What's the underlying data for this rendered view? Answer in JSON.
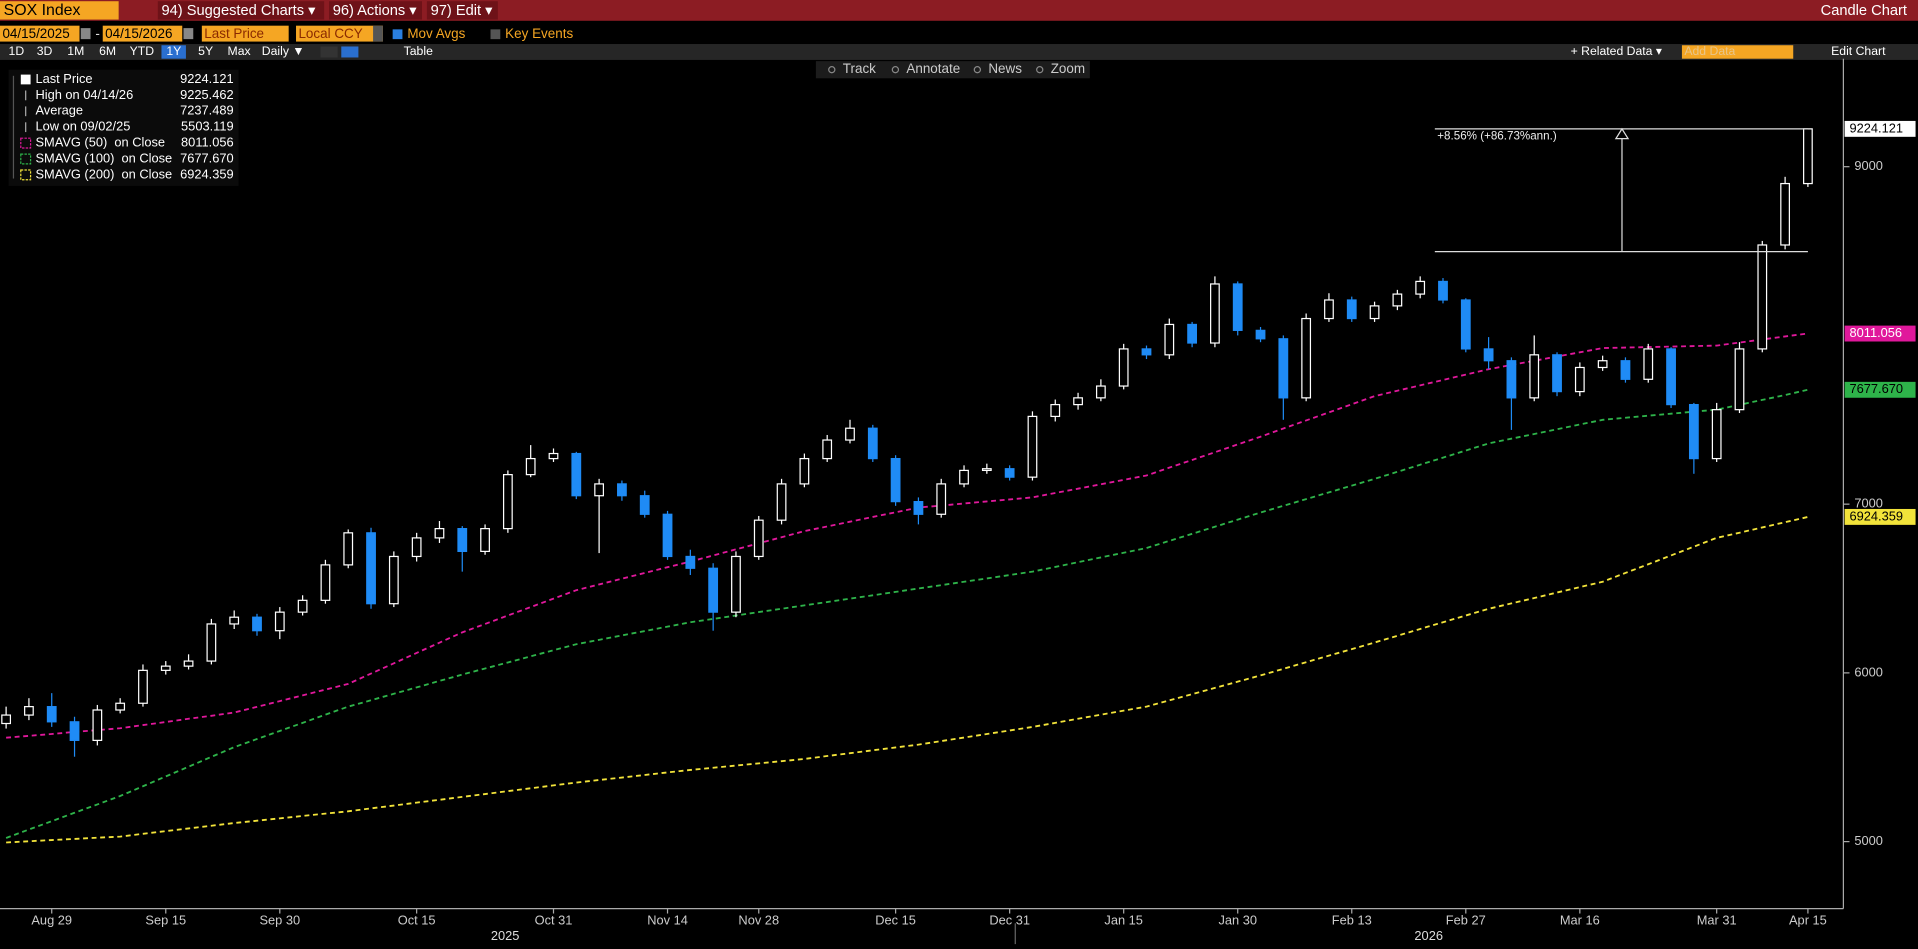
{
  "header": {
    "security": "SOX Index",
    "menus": [
      "94) Suggested Charts ▾",
      "96) Actions ▾",
      "97) Edit ▾"
    ],
    "chart_type": "Candle Chart"
  },
  "controls": {
    "start": "04/15/2025",
    "dash": "-",
    "end": "04/15/2026",
    "field": "Last Price",
    "currency": "Local CCY",
    "mov_avgs": "Mov Avgs",
    "key_events": "Key Events",
    "periods": [
      "1D",
      "3D",
      "1M",
      "6M",
      "YTD",
      "1Y",
      "5Y",
      "Max"
    ],
    "selected_period": "1Y",
    "frequency": "Daily ▼",
    "table": "Table",
    "related": "+ Related Data ▾",
    "add_data": "Add Data",
    "edit": "Edit Chart"
  },
  "toolbar": [
    "Track",
    "Annotate",
    "News",
    "Zoom"
  ],
  "chart_data": {
    "type": "candlestick",
    "categories": [
      null,
      null,
      "Aug 29",
      null,
      null,
      null,
      null,
      "Sep 15",
      null,
      null,
      null,
      null,
      "Sep 30",
      null,
      null,
      null,
      null,
      null,
      "Oct 15",
      null,
      null,
      null,
      null,
      null,
      "Oct 31",
      null,
      null,
      null,
      null,
      "Nov 14",
      null,
      null,
      null,
      "Nov 28",
      null,
      null,
      null,
      null,
      null,
      "Dec 15",
      null,
      null,
      null,
      null,
      "Dec 31",
      null,
      null,
      null,
      null,
      "Jan 15",
      null,
      null,
      null,
      null,
      "Jan 30",
      null,
      null,
      null,
      null,
      "Feb 13",
      null,
      null,
      null,
      null,
      "Feb 27",
      null,
      null,
      null,
      null,
      "Mar 16",
      null,
      null,
      null,
      null,
      null,
      "Mar 31",
      null,
      null,
      null,
      "Apr 15"
    ],
    "open": [
      5700,
      5750,
      5800,
      5710,
      5600,
      5780,
      5820,
      6015,
      6040,
      6070,
      6290,
      6330,
      6250,
      6360,
      6430,
      6640,
      6830,
      6410,
      6690,
      6800,
      6855,
      6720,
      6855,
      7175,
      7270,
      7300,
      7050,
      7120,
      7050,
      6940,
      6690,
      6620,
      6360,
      6690,
      6905,
      7120,
      7270,
      7380,
      7450,
      7270,
      7015,
      6940,
      7120,
      7200,
      7210,
      7160,
      7520,
      7590,
      7630,
      7700,
      7920,
      7885,
      8065,
      7955,
      8305,
      8030,
      7980,
      7630,
      8100,
      8210,
      8100,
      8175,
      8245,
      8320,
      8210,
      7920,
      7850,
      7630,
      7885,
      7667,
      7810,
      7850,
      7740,
      7920,
      7590,
      7270,
      7560,
      7920,
      8536,
      8900
    ],
    "high": [
      5800,
      5850,
      5880,
      5740,
      5810,
      5850,
      6050,
      6070,
      6110,
      6320,
      6370,
      6350,
      6390,
      6460,
      6670,
      6850,
      6860,
      6720,
      6830,
      6900,
      6870,
      6880,
      7200,
      7350,
      7330,
      7310,
      7150,
      7140,
      7080,
      6960,
      6730,
      6650,
      6720,
      6930,
      7150,
      7300,
      7410,
      7500,
      7470,
      7290,
      7040,
      7150,
      7230,
      7240,
      7230,
      7550,
      7620,
      7660,
      7740,
      7950,
      7940,
      8100,
      8080,
      8350,
      8320,
      8050,
      8000,
      8130,
      8250,
      8230,
      8200,
      8270,
      8350,
      8340,
      8220,
      7990,
      7870,
      8000,
      7900,
      7840,
      7880,
      7870,
      7950,
      7930,
      7600,
      7600,
      7960,
      8560,
      8940,
      9225.462
    ],
    "low": [
      5670,
      5720,
      5680,
      5503.119,
      5570,
      5760,
      5800,
      5990,
      6020,
      6050,
      6260,
      6220,
      6200,
      6340,
      6410,
      6620,
      6380,
      6390,
      6660,
      6770,
      6600,
      6700,
      6830,
      7160,
      7250,
      7030,
      6710,
      7020,
      6920,
      6670,
      6580,
      6250,
      6330,
      6670,
      6880,
      7100,
      7250,
      7360,
      7250,
      6990,
      6880,
      6920,
      7100,
      7180,
      7140,
      7140,
      7490,
      7560,
      7610,
      7680,
      7860,
      7860,
      7930,
      7930,
      8000,
      7960,
      7500,
      7610,
      8080,
      8080,
      8080,
      8150,
      8220,
      8190,
      7900,
      7800,
      7440,
      7610,
      7640,
      7640,
      7790,
      7720,
      7720,
      7570,
      7180,
      7250,
      7540,
      7900,
      8510,
      8880
    ],
    "close": [
      5750,
      5800,
      5710,
      5600,
      5780,
      5820,
      6015,
      6040,
      6070,
      6290,
      6330,
      6250,
      6360,
      6430,
      6640,
      6830,
      6410,
      6690,
      6800,
      6855,
      6720,
      6855,
      7175,
      7270,
      7300,
      7050,
      7120,
      7050,
      6940,
      6690,
      6620,
      6360,
      6690,
      6905,
      7120,
      7270,
      7380,
      7450,
      7270,
      7015,
      6940,
      7120,
      7200,
      7210,
      7160,
      7520,
      7590,
      7630,
      7700,
      7920,
      7885,
      8065,
      7955,
      8305,
      8030,
      7980,
      7630,
      8100,
      8210,
      8100,
      8175,
      8245,
      8320,
      8210,
      7920,
      7850,
      7630,
      7885,
      7667,
      7810,
      7850,
      7740,
      7920,
      7590,
      7270,
      7560,
      7920,
      8536,
      8900,
      9224.121
    ],
    "up_color": "#ffffff",
    "down_color": "#1f8bf5",
    "series": [
      {
        "name": "SMAVG (50)  on Close",
        "color": "#e0189b",
        "last_label": "8011.056",
        "values": [
          5616,
          5627,
          5638,
          5650,
          5661,
          5672,
          5691,
          5709,
          5728,
          5746,
          5765,
          5799,
          5833,
          5867,
          5901,
          5935,
          5996,
          6057,
          6118,
          6179,
          6240,
          6290,
          6340,
          6390,
          6440,
          6490,
          6524,
          6558,
          6592,
          6626,
          6660,
          6696,
          6732,
          6768,
          6804,
          6840,
          6868,
          6896,
          6924,
          6952,
          6980,
          6992,
          7004,
          7016,
          7028,
          7040,
          7066,
          7092,
          7118,
          7144,
          7170,
          7216,
          7262,
          7308,
          7354,
          7400,
          7448,
          7496,
          7544,
          7592,
          7640,
          7672,
          7704,
          7736,
          7768,
          7800,
          7825,
          7850,
          7875,
          7900,
          7925,
          7928,
          7931,
          7934,
          7937,
          7940,
          7958,
          7976,
          7994,
          8011.056
        ]
      },
      {
        "name": "SMAVG (100)  on Close",
        "color": "#2eb34a",
        "last_label": "7677.670",
        "values": [
          5022,
          5072,
          5121,
          5171,
          5220,
          5270,
          5328,
          5386,
          5444,
          5502,
          5560,
          5608,
          5656,
          5704,
          5752,
          5800,
          5838,
          5876,
          5914,
          5952,
          5990,
          6026,
          6062,
          6098,
          6134,
          6170,
          6196,
          6222,
          6248,
          6274,
          6300,
          6320,
          6340,
          6360,
          6380,
          6400,
          6420,
          6440,
          6460,
          6480,
          6500,
          6520,
          6540,
          6560,
          6580,
          6600,
          6628,
          6656,
          6684,
          6712,
          6740,
          6782,
          6824,
          6866,
          6908,
          6950,
          6990,
          7030,
          7070,
          7110,
          7150,
          7192,
          7234,
          7276,
          7318,
          7360,
          7388,
          7416,
          7444,
          7472,
          7500,
          7512,
          7524,
          7536,
          7548,
          7560,
          7589,
          7618,
          7647,
          7677.67
        ]
      },
      {
        "name": "SMAVG (200)  on Close",
        "color": "#f2e33a",
        "last_label": "6924.359",
        "values": [
          4995,
          5002,
          5009,
          5016,
          5023,
          5030,
          5046,
          5062,
          5078,
          5094,
          5110,
          5124,
          5138,
          5152,
          5166,
          5180,
          5197,
          5214,
          5231,
          5248,
          5265,
          5282,
          5299,
          5316,
          5333,
          5350,
          5365,
          5380,
          5395,
          5410,
          5425,
          5438,
          5451,
          5464,
          5477,
          5490,
          5507,
          5524,
          5541,
          5558,
          5575,
          5596,
          5617,
          5638,
          5659,
          5680,
          5704,
          5728,
          5752,
          5776,
          5800,
          5837,
          5874,
          5911,
          5948,
          5985,
          6024,
          6063,
          6102,
          6141,
          6180,
          6220,
          6260,
          6300,
          6340,
          6380,
          6412,
          6444,
          6476,
          6508,
          6540,
          6592,
          6644,
          6696,
          6748,
          6800,
          6831,
          6862,
          6893,
          6924.359
        ]
      }
    ],
    "legend": [
      {
        "name": "Last Price",
        "value": "9224.121"
      },
      {
        "name": "High on 04/14/26",
        "value": "9225.462"
      },
      {
        "name": "Average",
        "value": "7237.489"
      },
      {
        "name": "Low on 09/02/25",
        "value": "5503.119"
      }
    ],
    "annotation": {
      "text": "+8.56% (+86.73%ann.)",
      "base": 8496.8,
      "top": 9224.121
    },
    "year_labels": [
      "2025",
      "2026"
    ],
    "ylim": [
      4610,
      9640
    ],
    "yticks": [
      5000,
      6000,
      7000,
      9000
    ],
    "grid": false,
    "axis_side": "right"
  }
}
